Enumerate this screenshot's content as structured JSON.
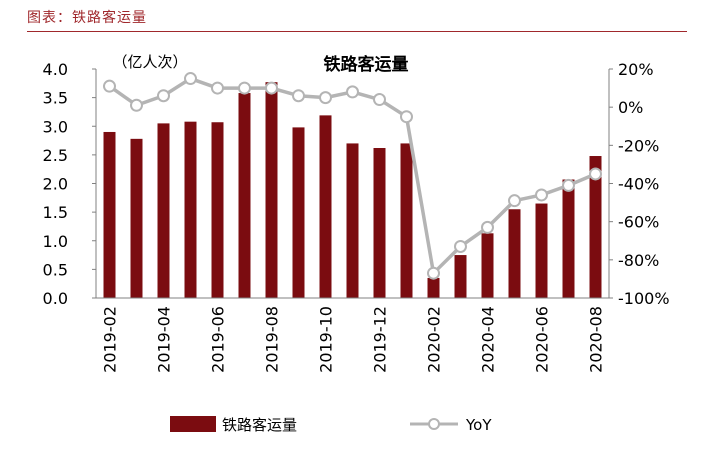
{
  "caption": "图表：铁路客运量",
  "chart_data": {
    "type": "bar+line",
    "title": "铁路客运量",
    "y_left_unit": "（亿人次）",
    "categories": [
      "2019-02",
      "2019-03",
      "2019-04",
      "2019-05",
      "2019-06",
      "2019-07",
      "2019-08",
      "2019-09",
      "2019-10",
      "2019-11",
      "2019-12",
      "2020-01",
      "2020-02",
      "2020-03",
      "2020-04",
      "2020-05",
      "2020-06",
      "2020-07",
      "2020-08"
    ],
    "x_tick_labels": [
      "2019-02",
      "2019-04",
      "2019-06",
      "2019-08",
      "2019-10",
      "2019-12",
      "2020-02",
      "2020-04",
      "2020-06",
      "2020-08"
    ],
    "series": [
      {
        "name": "铁路客运量",
        "type": "bar",
        "axis": "left",
        "color": "#7b0c10",
        "values": [
          2.9,
          2.78,
          3.05,
          3.08,
          3.07,
          3.58,
          3.77,
          2.98,
          3.19,
          2.7,
          2.62,
          2.7,
          0.35,
          0.75,
          1.13,
          1.55,
          1.65,
          2.07,
          2.48
        ]
      },
      {
        "name": "YoY",
        "type": "line",
        "axis": "right",
        "color": "#b4b4b4",
        "values": [
          11,
          1,
          6,
          15,
          10,
          10,
          10,
          6,
          5,
          8,
          4,
          -5,
          -87,
          -73,
          -63,
          -49,
          -46,
          -41,
          -35
        ]
      }
    ],
    "y_left": {
      "min": 0,
      "max": 4,
      "ticks": [
        "0.0",
        "0.5",
        "1.0",
        "1.5",
        "2.0",
        "2.5",
        "3.0",
        "3.5",
        "4.0"
      ]
    },
    "y_right": {
      "min": -100,
      "max": 20,
      "ticks": [
        "-100%",
        "-80%",
        "-60%",
        "-40%",
        "-20%",
        "0%",
        "20%"
      ]
    },
    "legend_position": "bottom"
  }
}
